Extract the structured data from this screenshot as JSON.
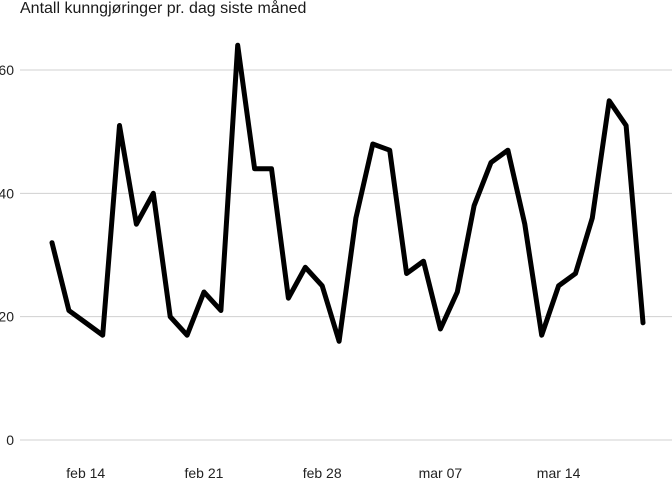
{
  "chart_data": {
    "type": "line",
    "title": "Antall kunngjøringer pr. dag siste måned",
    "xlabel": "",
    "ylabel": "",
    "x_start": "2021-02-12",
    "x_end": "2021-03-19",
    "x": [
      "2021-02-12",
      "2021-02-13",
      "2021-02-14",
      "2021-02-15",
      "2021-02-16",
      "2021-02-17",
      "2021-02-18",
      "2021-02-19",
      "2021-02-20",
      "2021-02-21",
      "2021-02-22",
      "2021-02-23",
      "2021-02-24",
      "2021-02-25",
      "2021-02-26",
      "2021-02-27",
      "2021-02-28",
      "2021-03-01",
      "2021-03-02",
      "2021-03-03",
      "2021-03-04",
      "2021-03-05",
      "2021-03-06",
      "2021-03-07",
      "2021-03-08",
      "2021-03-09",
      "2021-03-10",
      "2021-03-11",
      "2021-03-12",
      "2021-03-13",
      "2021-03-14",
      "2021-03-15",
      "2021-03-16",
      "2021-03-17",
      "2021-03-18",
      "2021-03-19"
    ],
    "values": [
      32,
      21,
      19,
      17,
      51,
      35,
      40,
      20,
      17,
      24,
      21,
      64,
      44,
      44,
      23,
      28,
      25,
      16,
      36,
      48,
      47,
      27,
      29,
      18,
      24,
      38,
      45,
      47,
      35,
      17,
      25,
      27,
      36,
      55,
      51,
      19
    ],
    "ylim": [
      0,
      66
    ],
    "yticks": [
      0,
      20,
      40,
      60
    ],
    "ytick_labels": [
      "0",
      "20",
      "40",
      "60"
    ],
    "xtick_dates": [
      "2021-02-14",
      "2021-02-21",
      "2021-02-28",
      "2021-03-07",
      "2021-03-14"
    ],
    "xtick_labels": [
      "feb 14",
      "feb 21",
      "feb 28",
      "mar 07",
      "mar 14"
    ],
    "grid": "horizontal",
    "line_color": "#000000",
    "grid_color": "#d0d0d0"
  }
}
